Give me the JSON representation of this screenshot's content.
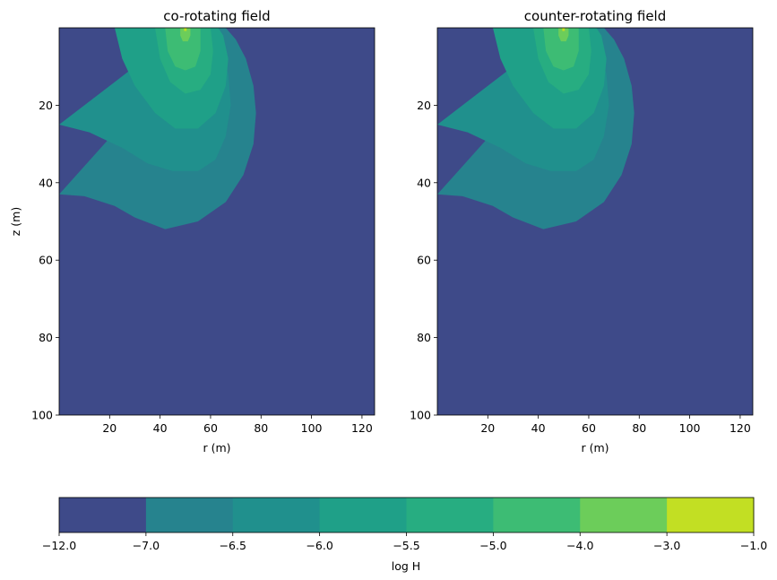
{
  "chart_data": [
    {
      "type": "contour",
      "title": "co-rotating field",
      "xlabel": "r (m)",
      "ylabel": "z (m)",
      "xlim": [
        0,
        125
      ],
      "ylim": [
        100,
        0
      ],
      "xticks": [
        20,
        40,
        60,
        80,
        100,
        120
      ],
      "yticks": [
        20,
        40,
        60,
        80,
        100
      ],
      "source": {
        "r": 50,
        "z": 0
      },
      "contours": [
        {
          "level": -7.0,
          "center": [
            50,
            0
          ],
          "outline": [
            [
              0,
              43
            ],
            [
              10,
              43.5
            ],
            [
              22,
              46
            ],
            [
              30,
              49
            ],
            [
              42,
              52
            ],
            [
              55,
              50
            ],
            [
              66,
              45
            ],
            [
              73,
              38
            ],
            [
              77,
              30
            ],
            [
              78,
              22
            ],
            [
              77,
              15
            ],
            [
              74,
              8
            ],
            [
              70,
              3
            ],
            [
              66,
              0
            ]
          ]
        },
        {
          "level": -6.5,
          "center": [
            48,
            0
          ],
          "outline": [
            [
              0,
              25
            ],
            [
              12,
              27
            ],
            [
              25,
              31
            ],
            [
              35,
              35
            ],
            [
              45,
              37
            ],
            [
              55,
              37
            ],
            [
              62,
              34
            ],
            [
              66,
              28
            ],
            [
              68,
              20
            ],
            [
              67,
              12
            ],
            [
              64,
              5
            ],
            [
              60,
              0
            ]
          ]
        },
        {
          "level": -6.0,
          "center": [
            48,
            0
          ],
          "outline": [
            [
              22,
              0
            ],
            [
              25,
              8
            ],
            [
              30,
              15
            ],
            [
              38,
              22
            ],
            [
              46,
              26
            ],
            [
              55,
              26
            ],
            [
              62,
              22
            ],
            [
              66,
              15
            ],
            [
              67,
              8
            ],
            [
              65,
              2
            ],
            [
              63,
              0
            ]
          ]
        },
        {
          "level": -5.5,
          "center": [
            48,
            0
          ],
          "outline": [
            [
              38,
              0
            ],
            [
              40,
              8
            ],
            [
              44,
              14
            ],
            [
              50,
              17
            ],
            [
              56,
              16
            ],
            [
              60,
              12
            ],
            [
              61,
              6
            ],
            [
              60,
              0
            ]
          ]
        },
        {
          "level": -5.0,
          "center": [
            48,
            0
          ],
          "outline": [
            [
              42,
              0
            ],
            [
              43,
              6
            ],
            [
              46,
              10
            ],
            [
              50,
              11
            ],
            [
              54,
              10
            ],
            [
              56,
              6
            ],
            [
              56,
              0
            ]
          ]
        },
        {
          "level": -4.0,
          "center": [
            50,
            0
          ],
          "outline": [
            [
              48,
              0
            ],
            [
              48,
              2
            ],
            [
              49,
              3.5
            ],
            [
              51,
              3.5
            ],
            [
              52,
              2
            ],
            [
              52,
              0
            ]
          ]
        },
        {
          "level": -3.0,
          "center": [
            50,
            0
          ],
          "outline": [
            [
              49.5,
              0
            ],
            [
              49.5,
              0.8
            ],
            [
              50.5,
              0.8
            ],
            [
              50.5,
              0
            ]
          ]
        }
      ]
    },
    {
      "type": "contour",
      "title": "counter-rotating field",
      "xlabel": "r (m)",
      "ylabel": "",
      "xlim": [
        0,
        125
      ],
      "ylim": [
        100,
        0
      ],
      "xticks": [
        20,
        40,
        60,
        80,
        100,
        120
      ],
      "yticks": [
        20,
        40,
        60,
        80,
        100
      ],
      "source": {
        "r": 50,
        "z": 0
      },
      "contours": [
        {
          "level": -7.0,
          "center": [
            50,
            0
          ],
          "outline": [
            [
              0,
              43
            ],
            [
              10,
              43.5
            ],
            [
              22,
              46
            ],
            [
              30,
              49
            ],
            [
              42,
              52
            ],
            [
              55,
              50
            ],
            [
              66,
              45
            ],
            [
              73,
              38
            ],
            [
              77,
              30
            ],
            [
              78,
              22
            ],
            [
              77,
              15
            ],
            [
              74,
              8
            ],
            [
              70,
              3
            ],
            [
              66,
              0
            ]
          ]
        },
        {
          "level": -6.5,
          "center": [
            48,
            0
          ],
          "outline": [
            [
              0,
              25
            ],
            [
              12,
              27
            ],
            [
              25,
              31
            ],
            [
              35,
              35
            ],
            [
              45,
              37
            ],
            [
              55,
              37
            ],
            [
              62,
              34
            ],
            [
              66,
              28
            ],
            [
              68,
              20
            ],
            [
              67,
              12
            ],
            [
              64,
              5
            ],
            [
              60,
              0
            ]
          ]
        },
        {
          "level": -6.0,
          "center": [
            48,
            0
          ],
          "outline": [
            [
              22,
              0
            ],
            [
              25,
              8
            ],
            [
              30,
              15
            ],
            [
              38,
              22
            ],
            [
              46,
              26
            ],
            [
              55,
              26
            ],
            [
              62,
              22
            ],
            [
              66,
              15
            ],
            [
              67,
              8
            ],
            [
              65,
              2
            ],
            [
              63,
              0
            ]
          ]
        },
        {
          "level": -5.5,
          "center": [
            48,
            0
          ],
          "outline": [
            [
              38,
              0
            ],
            [
              40,
              8
            ],
            [
              44,
              14
            ],
            [
              50,
              17
            ],
            [
              56,
              16
            ],
            [
              60,
              12
            ],
            [
              61,
              6
            ],
            [
              60,
              0
            ]
          ]
        },
        {
          "level": -5.0,
          "center": [
            48,
            0
          ],
          "outline": [
            [
              42,
              0
            ],
            [
              43,
              6
            ],
            [
              46,
              10
            ],
            [
              50,
              11
            ],
            [
              54,
              10
            ],
            [
              56,
              6
            ],
            [
              56,
              0
            ]
          ]
        },
        {
          "level": -4.0,
          "center": [
            50,
            0
          ],
          "outline": [
            [
              48,
              0
            ],
            [
              48,
              2
            ],
            [
              49,
              3.5
            ],
            [
              51,
              3.5
            ],
            [
              52,
              2
            ],
            [
              52,
              0
            ]
          ]
        },
        {
          "level": -3.0,
          "center": [
            50,
            0
          ],
          "outline": [
            [
              49.5,
              0
            ],
            [
              49.5,
              0.8
            ],
            [
              50.5,
              0.8
            ],
            [
              50.5,
              0
            ]
          ]
        }
      ]
    }
  ],
  "colorbar": {
    "label": "log H",
    "boundaries": [
      -12.0,
      -7.0,
      -6.5,
      -6.0,
      -5.5,
      -5.0,
      -4.0,
      -3.0,
      -1.0
    ],
    "tick_labels": [
      "−12.0",
      "−7.0",
      "−6.5",
      "−6.0",
      "−5.5",
      "−5.0",
      "−4.0",
      "−3.0",
      "−1.0"
    ],
    "colors": [
      "#3e4a89",
      "#26838e",
      "#20908d",
      "#1fa088",
      "#27ad81",
      "#3dbc74",
      "#6ccd5a",
      "#c2df23"
    ]
  },
  "band_colors": {
    "-12.0": "#3e4a89",
    "-7.0": "#26838e",
    "-6.5": "#20908d",
    "-6.0": "#1fa088",
    "-5.5": "#27ad81",
    "-5.0": "#3dbc74",
    "-4.0": "#6ccd5a",
    "-3.0": "#c2df23"
  }
}
